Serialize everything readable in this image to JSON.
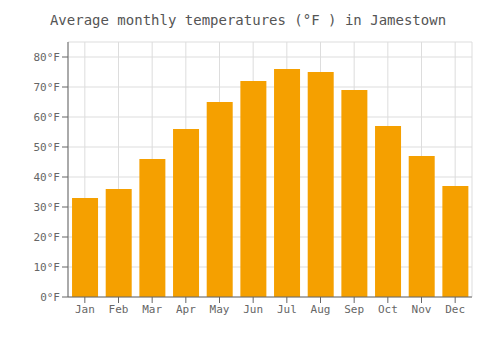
{
  "chart_data": {
    "type": "bar",
    "title": "Average monthly temperatures (°F ) in Jamestown",
    "categories": [
      "Jan",
      "Feb",
      "Mar",
      "Apr",
      "May",
      "Jun",
      "Jul",
      "Aug",
      "Sep",
      "Oct",
      "Nov",
      "Dec"
    ],
    "values": [
      33,
      36,
      46,
      56,
      65,
      72,
      76,
      75,
      69,
      57,
      47,
      37
    ],
    "color": "#F5A000",
    "ylim": [
      0,
      85
    ],
    "yticks": [
      {
        "value": 0,
        "label": "0°F"
      },
      {
        "value": 10,
        "label": "10°F"
      },
      {
        "value": 20,
        "label": "20°F"
      },
      {
        "value": 30,
        "label": "30°F"
      },
      {
        "value": 40,
        "label": "40°F"
      },
      {
        "value": 50,
        "label": "50°F"
      },
      {
        "value": 60,
        "label": "60°F"
      },
      {
        "value": 70,
        "label": "70°F"
      },
      {
        "value": 80,
        "label": "80°F"
      }
    ],
    "grid": true
  }
}
